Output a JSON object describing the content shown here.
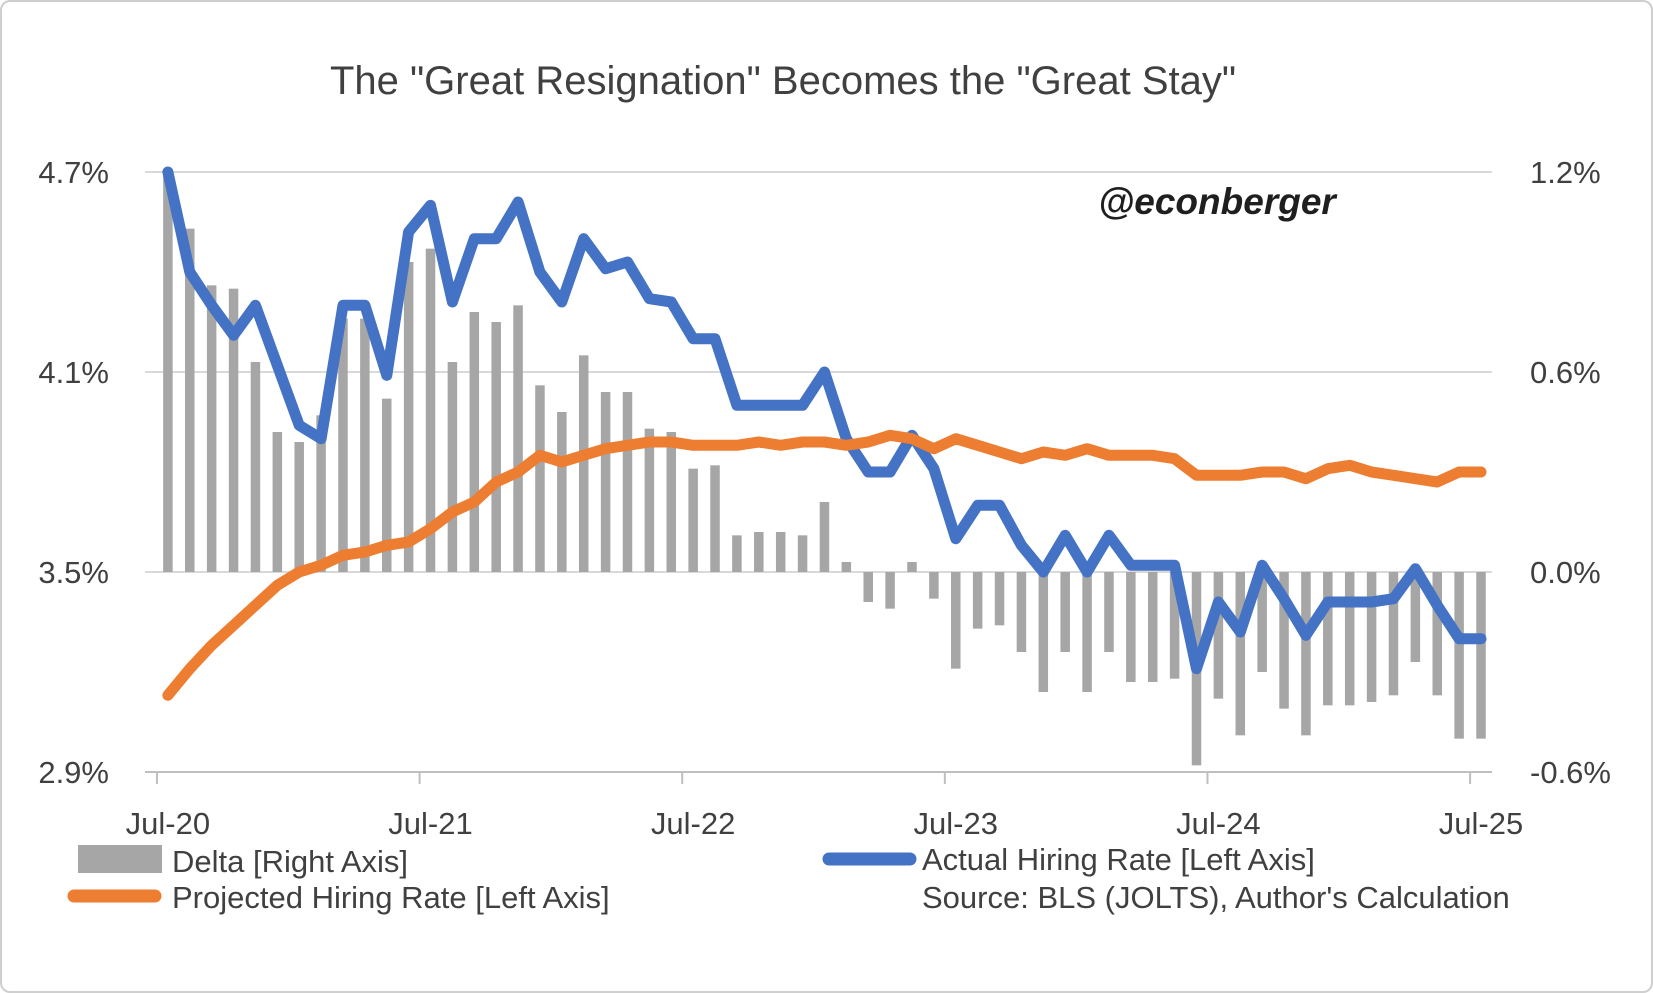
{
  "title": "The \"Great Resignation\" Becomes the \"Great Stay\"",
  "watermark": "@econberger",
  "legend": {
    "delta_label": "Delta [Right Axis]",
    "actual_label": "Actual Hiring Rate [Left Axis]",
    "projected_label": "Projected Hiring Rate [Left Axis]",
    "source_note": "Source: BLS (JOLTS), Author's Calculation"
  },
  "colors": {
    "actual": "#4472C4",
    "projected": "#ED7D31",
    "delta": "#A6A6A6",
    "gridline": "#D9D9D9",
    "axis_line": "#BFBFBF",
    "text": "#404040"
  },
  "chart_data": {
    "type": "bar+line combo",
    "grid": "horizontal gridlines on",
    "legend_position": "bottom",
    "left_axis": {
      "label_ticks": [
        "4.7%",
        "4.1%",
        "3.5%",
        "2.9%"
      ],
      "tick_values": [
        4.7,
        4.1,
        3.5,
        2.9
      ],
      "min": 2.9,
      "max": 4.7
    },
    "right_axis": {
      "label_ticks": [
        "1.2%",
        "0.6%",
        "0.0%",
        "-0.6%"
      ],
      "tick_values": [
        1.2,
        0.6,
        0.0,
        -0.6
      ],
      "min": -0.6,
      "max": 1.2
    },
    "x_axis": {
      "shown_tick_labels": [
        "Jul-20",
        "Jul-21",
        "Jul-22",
        "Jul-23",
        "Jul-24",
        "Jul-25"
      ]
    },
    "categories": [
      "Jul-20",
      "Aug-20",
      "Sep-20",
      "Oct-20",
      "Nov-20",
      "Dec-20",
      "Jan-21",
      "Feb-21",
      "Mar-21",
      "Apr-21",
      "May-21",
      "Jun-21",
      "Jul-21",
      "Aug-21",
      "Sep-21",
      "Oct-21",
      "Nov-21",
      "Dec-21",
      "Jan-22",
      "Feb-22",
      "Mar-22",
      "Apr-22",
      "May-22",
      "Jun-22",
      "Jul-22",
      "Aug-22",
      "Sep-22",
      "Oct-22",
      "Nov-22",
      "Dec-22",
      "Jan-23",
      "Feb-23",
      "Mar-23",
      "Apr-23",
      "May-23",
      "Jun-23",
      "Jul-23",
      "Aug-23",
      "Sep-23",
      "Oct-23",
      "Nov-23",
      "Dec-23",
      "Jan-24",
      "Feb-24",
      "Mar-24",
      "Apr-24",
      "May-24",
      "Jun-24",
      "Jul-24",
      "Aug-24",
      "Sep-24",
      "Oct-24",
      "Nov-24",
      "Dec-24",
      "Jan-25",
      "Feb-25",
      "Mar-25",
      "Apr-25",
      "May-25",
      "Jun-25",
      "Jul-25"
    ],
    "series": [
      {
        "name": "Delta [Right Axis]",
        "type": "bar",
        "axis": "right",
        "color": "#A6A6A6",
        "values": [
          1.19,
          1.03,
          0.86,
          0.85,
          0.63,
          0.42,
          0.39,
          0.47,
          0.76,
          0.76,
          0.52,
          0.93,
          0.97,
          0.63,
          0.78,
          0.75,
          0.8,
          0.56,
          0.48,
          0.65,
          0.54,
          0.54,
          0.43,
          0.42,
          0.31,
          0.32,
          0.11,
          0.12,
          0.12,
          0.11,
          0.21,
          0.03,
          -0.09,
          -0.11,
          0.03,
          -0.08,
          -0.29,
          -0.17,
          -0.16,
          -0.24,
          -0.36,
          -0.24,
          -0.36,
          -0.24,
          -0.33,
          -0.33,
          -0.32,
          -0.58,
          -0.38,
          -0.49,
          -0.3,
          -0.41,
          -0.49,
          -0.4,
          -0.4,
          -0.39,
          -0.37,
          -0.27,
          -0.37,
          -0.5,
          -0.5
        ]
      },
      {
        "name": "Actual Hiring Rate [Left Axis]",
        "type": "line",
        "axis": "left",
        "color": "#4472C4",
        "values": [
          4.7,
          4.4,
          4.3,
          4.21,
          4.3,
          4.12,
          3.94,
          3.9,
          4.3,
          4.3,
          4.09,
          4.52,
          4.6,
          4.31,
          4.5,
          4.5,
          4.61,
          4.4,
          4.31,
          4.5,
          4.41,
          4.43,
          4.32,
          4.31,
          4.2,
          4.2,
          4.0,
          4.0,
          4.0,
          4.0,
          4.1,
          3.9,
          3.8,
          3.8,
          3.91,
          3.81,
          3.6,
          3.7,
          3.7,
          3.58,
          3.5,
          3.61,
          3.5,
          3.61,
          3.52,
          3.52,
          3.52,
          3.21,
          3.41,
          3.32,
          3.52,
          3.42,
          3.31,
          3.41,
          3.41,
          3.41,
          3.42,
          3.51,
          3.4,
          3.3,
          3.3
        ]
      },
      {
        "name": "Projected Hiring Rate [Left Axis]",
        "type": "line",
        "axis": "left",
        "color": "#ED7D31",
        "values": [
          3.13,
          3.21,
          3.28,
          3.34,
          3.4,
          3.46,
          3.5,
          3.52,
          3.55,
          3.56,
          3.58,
          3.59,
          3.63,
          3.68,
          3.71,
          3.77,
          3.8,
          3.85,
          3.83,
          3.85,
          3.87,
          3.88,
          3.89,
          3.89,
          3.88,
          3.88,
          3.88,
          3.89,
          3.88,
          3.89,
          3.89,
          3.88,
          3.89,
          3.91,
          3.9,
          3.87,
          3.9,
          3.88,
          3.86,
          3.84,
          3.86,
          3.85,
          3.87,
          3.85,
          3.85,
          3.85,
          3.84,
          3.79,
          3.79,
          3.79,
          3.8,
          3.8,
          3.78,
          3.81,
          3.82,
          3.8,
          3.79,
          3.78,
          3.77,
          3.8,
          3.8
        ]
      }
    ]
  }
}
